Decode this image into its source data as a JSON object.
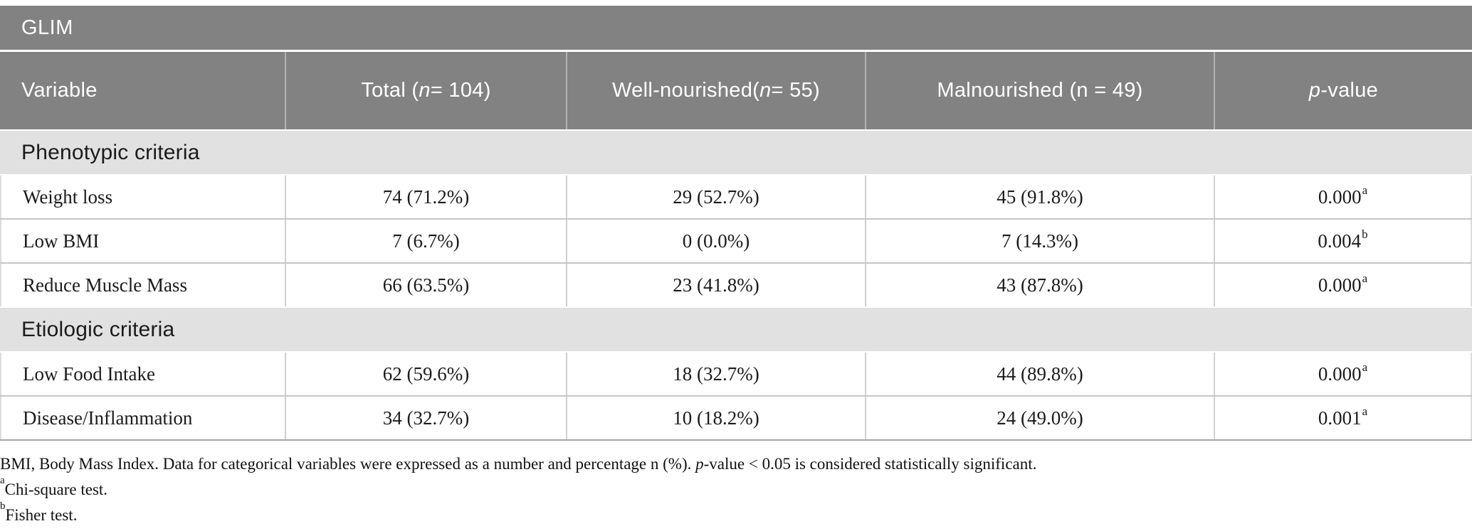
{
  "title_bar": {
    "label": "GLIM"
  },
  "header": {
    "columns": [
      {
        "key": "variable",
        "name": "column-header-variable",
        "segments": [
          {
            "t": "Variable"
          }
        ]
      },
      {
        "key": "total",
        "name": "column-header-total",
        "segments": [
          {
            "t": "Total ("
          },
          {
            "t": "n",
            "i": true
          },
          {
            "t": " = 104)"
          }
        ]
      },
      {
        "key": "well",
        "name": "column-header-well-nourished",
        "segments": [
          {
            "t": "Well-nourished"
          },
          {
            "br": true
          },
          {
            "t": "("
          },
          {
            "t": "n",
            "i": true
          },
          {
            "t": " = 55)"
          }
        ]
      },
      {
        "key": "mal",
        "name": "column-header-malnourished",
        "segments": [
          {
            "t": "Malnourished (n = 49)"
          }
        ]
      },
      {
        "key": "p",
        "name": "column-header-p-value",
        "segments": [
          {
            "t": "p",
            "i": true
          },
          {
            "t": "-value"
          }
        ]
      }
    ]
  },
  "sections": [
    {
      "header": "Phenotypic criteria",
      "rows": [
        {
          "variable": "Weight loss",
          "total": "74 (71.2%)",
          "well": "29 (52.7%)",
          "mal": "45 (91.8%)",
          "p": "0.000",
          "p_sup": "a"
        },
        {
          "variable": "Low BMI",
          "total": "7 (6.7%)",
          "well": "0 (0.0%)",
          "mal": "7 (14.3%)",
          "p": "0.004",
          "p_sup": "b"
        },
        {
          "variable": "Reduce Muscle Mass",
          "total": "66 (63.5%)",
          "well": "23 (41.8%)",
          "mal": "43 (87.8%)",
          "p": "0.000",
          "p_sup": "a"
        }
      ]
    },
    {
      "header": "Etiologic criteria",
      "rows": [
        {
          "variable": "Low Food Intake",
          "total": "62 (59.6%)",
          "well": "18 (32.7%)",
          "mal": "44 (89.8%)",
          "p": "0.000",
          "p_sup": "a"
        },
        {
          "variable": "Disease/Inflammation",
          "total": "34 (32.7%)",
          "well": "10 (18.2%)",
          "mal": "24 (49.0%)",
          "p": "0.001",
          "p_sup": "a"
        }
      ]
    }
  ],
  "footnotes": {
    "lines": [
      {
        "name": "footnote-abbreviations",
        "segments": [
          {
            "t": "BMI, Body Mass Index. Data for categorical variables were expressed as a number and percentage n (%). "
          },
          {
            "t": "p",
            "i": true
          },
          {
            "t": "-value < 0.05 is considered statistically significant."
          }
        ]
      },
      {
        "name": "footnote-chi-square",
        "segments": [
          {
            "t": "a",
            "sup": true
          },
          {
            "t": "Chi-square test."
          }
        ]
      },
      {
        "name": "footnote-fisher",
        "segments": [
          {
            "t": "b",
            "sup": true
          },
          {
            "t": "Fisher test."
          }
        ]
      }
    ]
  },
  "colors": {
    "header_gray": "#828282",
    "band_gray": "#e1e1e1",
    "row_border": "#c6c6c6",
    "cell_divider": "#cfcfcf",
    "table_bottom_border": "#a6a6a6",
    "header_text": "#ffffff",
    "body_text": "#1b1b1b"
  }
}
